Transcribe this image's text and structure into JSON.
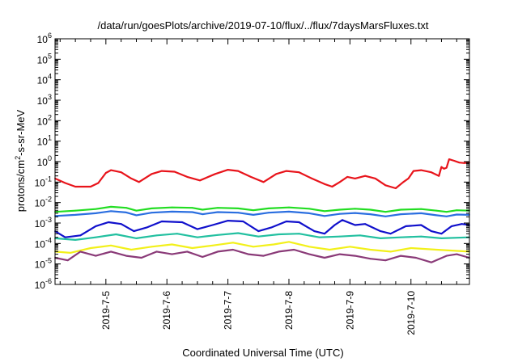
{
  "chart_data": {
    "type": "line",
    "title": "/data/run/goesPlots/archive/2019-07-10/flux/../flux/7daysMarsFluxes.txt",
    "xlabel": "Coordinated Universal Time (UTC)",
    "ylabel_base": "protons/cm",
    "ylabel_sup": "2",
    "ylabel_rest": "-s-sr-MeV",
    "y_scale": "log",
    "ylim_exp": [
      -6,
      6
    ],
    "y_tick_exponents": [
      -6,
      -5,
      -4,
      -3,
      -2,
      -1,
      0,
      1,
      2,
      3,
      4,
      5,
      6
    ],
    "y_tick_base": "10",
    "xlim": [
      "2019-07-04T04:00",
      "2019-07-10T23:00"
    ],
    "x_ticks": [
      "2019-7-5",
      "2019-7-6",
      "2019-7-7",
      "2019-7-8",
      "2019-7-9",
      "2019-7-10"
    ],
    "grid": false,
    "legend": "none",
    "series": [
      {
        "color": "#e8141b",
        "points": [
          [
            "2019-07-04T04:00",
            0.15
          ],
          [
            "2019-07-04T08:00",
            0.09
          ],
          [
            "2019-07-04T12:00",
            0.06
          ],
          [
            "2019-07-04T18:00",
            0.06
          ],
          [
            "2019-07-04T21:00",
            0.09
          ],
          [
            "2019-07-05T00:00",
            0.28
          ],
          [
            "2019-07-05T02:00",
            0.38
          ],
          [
            "2019-07-05T06:00",
            0.3
          ],
          [
            "2019-07-05T10:00",
            0.15
          ],
          [
            "2019-07-05T13:00",
            0.1
          ],
          [
            "2019-07-05T18:00",
            0.25
          ],
          [
            "2019-07-05T22:00",
            0.35
          ],
          [
            "2019-07-06T03:00",
            0.32
          ],
          [
            "2019-07-06T08:00",
            0.18
          ],
          [
            "2019-07-06T13:00",
            0.12
          ],
          [
            "2019-07-06T19:00",
            0.25
          ],
          [
            "2019-07-07T00:00",
            0.4
          ],
          [
            "2019-07-07T04:00",
            0.35
          ],
          [
            "2019-07-07T09:00",
            0.18
          ],
          [
            "2019-07-07T14:00",
            0.1
          ],
          [
            "2019-07-07T19:00",
            0.25
          ],
          [
            "2019-07-07T23:00",
            0.35
          ],
          [
            "2019-07-08T04:00",
            0.3
          ],
          [
            "2019-07-08T09:00",
            0.15
          ],
          [
            "2019-07-08T14:00",
            0.08
          ],
          [
            "2019-07-08T17:00",
            0.06
          ],
          [
            "2019-07-08T20:00",
            0.1
          ],
          [
            "2019-07-08T23:00",
            0.18
          ],
          [
            "2019-07-09T02:00",
            0.15
          ],
          [
            "2019-07-09T06:00",
            0.2
          ],
          [
            "2019-07-09T10:00",
            0.15
          ],
          [
            "2019-07-09T14:00",
            0.07
          ],
          [
            "2019-07-09T18:00",
            0.05
          ],
          [
            "2019-07-09T21:00",
            0.1
          ],
          [
            "2019-07-09T23:00",
            0.15
          ],
          [
            "2019-07-10T01:00",
            0.35
          ],
          [
            "2019-07-10T04:00",
            0.38
          ],
          [
            "2019-07-10T08:00",
            0.3
          ],
          [
            "2019-07-10T11:00",
            0.2
          ],
          [
            "2019-07-10T12:00",
            0.55
          ],
          [
            "2019-07-10T13:00",
            0.45
          ],
          [
            "2019-07-10T14:00",
            0.5
          ],
          [
            "2019-07-10T15:00",
            1.3
          ],
          [
            "2019-07-10T17:00",
            1.1
          ],
          [
            "2019-07-10T19:00",
            0.9
          ],
          [
            "2019-07-10T21:00",
            0.85
          ],
          [
            "2019-07-10T23:00",
            0.9
          ]
        ]
      },
      {
        "color": "#22dd22",
        "points": [
          [
            "2019-07-04T04:00",
            0.0035
          ],
          [
            "2019-07-04T12:00",
            0.004
          ],
          [
            "2019-07-04T20:00",
            0.0048
          ],
          [
            "2019-07-05T02:00",
            0.0062
          ],
          [
            "2019-07-05T08:00",
            0.0055
          ],
          [
            "2019-07-05T12:00",
            0.004
          ],
          [
            "2019-07-05T18:00",
            0.0052
          ],
          [
            "2019-07-06T02:00",
            0.0058
          ],
          [
            "2019-07-06T10:00",
            0.0055
          ],
          [
            "2019-07-06T14:00",
            0.0045
          ],
          [
            "2019-07-06T20:00",
            0.0055
          ],
          [
            "2019-07-07T04:00",
            0.0052
          ],
          [
            "2019-07-07T10:00",
            0.0042
          ],
          [
            "2019-07-07T16:00",
            0.0052
          ],
          [
            "2019-07-08T00:00",
            0.0058
          ],
          [
            "2019-07-08T08:00",
            0.005
          ],
          [
            "2019-07-08T14:00",
            0.0038
          ],
          [
            "2019-07-08T20:00",
            0.0045
          ],
          [
            "2019-07-09T02:00",
            0.005
          ],
          [
            "2019-07-09T08:00",
            0.0045
          ],
          [
            "2019-07-09T14:00",
            0.0035
          ],
          [
            "2019-07-09T20:00",
            0.0045
          ],
          [
            "2019-07-10T04:00",
            0.0048
          ],
          [
            "2019-07-10T10:00",
            0.004
          ],
          [
            "2019-07-10T14:00",
            0.0035
          ],
          [
            "2019-07-10T18:00",
            0.0042
          ],
          [
            "2019-07-10T23:00",
            0.004
          ]
        ]
      },
      {
        "color": "#2a6ee0",
        "points": [
          [
            "2019-07-04T04:00",
            0.0022
          ],
          [
            "2019-07-04T12:00",
            0.0025
          ],
          [
            "2019-07-04T20:00",
            0.003
          ],
          [
            "2019-07-05T02:00",
            0.0038
          ],
          [
            "2019-07-05T08:00",
            0.0033
          ],
          [
            "2019-07-05T12:00",
            0.0024
          ],
          [
            "2019-07-05T18:00",
            0.0032
          ],
          [
            "2019-07-06T02:00",
            0.0036
          ],
          [
            "2019-07-06T10:00",
            0.0034
          ],
          [
            "2019-07-06T14:00",
            0.0027
          ],
          [
            "2019-07-06T20:00",
            0.0034
          ],
          [
            "2019-07-07T04:00",
            0.0032
          ],
          [
            "2019-07-07T10:00",
            0.0025
          ],
          [
            "2019-07-07T16:00",
            0.0032
          ],
          [
            "2019-07-08T00:00",
            0.0036
          ],
          [
            "2019-07-08T08:00",
            0.003
          ],
          [
            "2019-07-08T14:00",
            0.0022
          ],
          [
            "2019-07-08T20:00",
            0.0028
          ],
          [
            "2019-07-09T02:00",
            0.0031
          ],
          [
            "2019-07-09T08:00",
            0.0027
          ],
          [
            "2019-07-09T14:00",
            0.0021
          ],
          [
            "2019-07-09T20:00",
            0.0027
          ],
          [
            "2019-07-10T04:00",
            0.003
          ],
          [
            "2019-07-10T10:00",
            0.0024
          ],
          [
            "2019-07-10T14:00",
            0.0021
          ],
          [
            "2019-07-10T18:00",
            0.0026
          ],
          [
            "2019-07-10T23:00",
            0.0025
          ]
        ]
      },
      {
        "color": "#1010cc",
        "points": [
          [
            "2019-07-04T04:00",
            0.0004
          ],
          [
            "2019-07-04T08:00",
            0.0002
          ],
          [
            "2019-07-04T14:00",
            0.00025
          ],
          [
            "2019-07-04T20:00",
            0.0007
          ],
          [
            "2019-07-05T01:00",
            0.0011
          ],
          [
            "2019-07-05T06:00",
            0.0009
          ],
          [
            "2019-07-05T11:00",
            0.0004
          ],
          [
            "2019-07-05T16:00",
            0.0006
          ],
          [
            "2019-07-05T22:00",
            0.0012
          ],
          [
            "2019-07-06T06:00",
            0.0011
          ],
          [
            "2019-07-06T12:00",
            0.0005
          ],
          [
            "2019-07-06T18:00",
            0.0008
          ],
          [
            "2019-07-07T00:00",
            0.0013
          ],
          [
            "2019-07-07T06:00",
            0.0012
          ],
          [
            "2019-07-07T12:00",
            0.0004
          ],
          [
            "2019-07-07T17:00",
            0.0006
          ],
          [
            "2019-07-07T23:00",
            0.0012
          ],
          [
            "2019-07-08T04:00",
            0.0011
          ],
          [
            "2019-07-08T10:00",
            0.0004
          ],
          [
            "2019-07-08T14:00",
            0.0003
          ],
          [
            "2019-07-08T18:00",
            0.0008
          ],
          [
            "2019-07-08T21:00",
            0.0014
          ],
          [
            "2019-07-09T02:00",
            0.0008
          ],
          [
            "2019-07-09T06:00",
            0.0009
          ],
          [
            "2019-07-09T12:00",
            0.0004
          ],
          [
            "2019-07-09T16:00",
            0.0003
          ],
          [
            "2019-07-09T22:00",
            0.0007
          ],
          [
            "2019-07-10T04:00",
            0.0008
          ],
          [
            "2019-07-10T08:00",
            0.0004
          ],
          [
            "2019-07-10T12:00",
            0.0003
          ],
          [
            "2019-07-10T16:00",
            0.0007
          ],
          [
            "2019-07-10T20:00",
            0.0009
          ],
          [
            "2019-07-10T23:00",
            0.0008
          ]
        ]
      },
      {
        "color": "#22c0a0",
        "points": [
          [
            "2019-07-04T04:00",
            0.00018
          ],
          [
            "2019-07-04T12:00",
            0.00015
          ],
          [
            "2019-07-04T20:00",
            0.0002
          ],
          [
            "2019-07-05T04:00",
            0.00028
          ],
          [
            "2019-07-05T12:00",
            0.00018
          ],
          [
            "2019-07-05T20:00",
            0.00025
          ],
          [
            "2019-07-06T04:00",
            0.0003
          ],
          [
            "2019-07-06T12:00",
            0.0002
          ],
          [
            "2019-07-06T20:00",
            0.00026
          ],
          [
            "2019-07-07T04:00",
            0.00032
          ],
          [
            "2019-07-07T12:00",
            0.00022
          ],
          [
            "2019-07-07T20:00",
            0.00028
          ],
          [
            "2019-07-08T04:00",
            0.0003
          ],
          [
            "2019-07-08T12:00",
            0.0002
          ],
          [
            "2019-07-08T20:00",
            0.00022
          ],
          [
            "2019-07-09T04:00",
            0.00025
          ],
          [
            "2019-07-09T12:00",
            0.00018
          ],
          [
            "2019-07-09T20:00",
            0.0002
          ],
          [
            "2019-07-10T04:00",
            0.00022
          ],
          [
            "2019-07-10T12:00",
            0.00018
          ],
          [
            "2019-07-10T23:00",
            0.0002
          ]
        ]
      },
      {
        "color": "#f2f01a",
        "points": [
          [
            "2019-07-04T04:00",
            4e-05
          ],
          [
            "2019-07-04T10:00",
            3.5e-05
          ],
          [
            "2019-07-04T18:00",
            6e-05
          ],
          [
            "2019-07-05T02:00",
            8e-05
          ],
          [
            "2019-07-05T10:00",
            5e-05
          ],
          [
            "2019-07-05T18:00",
            7e-05
          ],
          [
            "2019-07-06T02:00",
            9e-05
          ],
          [
            "2019-07-06T10:00",
            6e-05
          ],
          [
            "2019-07-06T18:00",
            8e-05
          ],
          [
            "2019-07-07T02:00",
            0.00011
          ],
          [
            "2019-07-07T10:00",
            7e-05
          ],
          [
            "2019-07-07T18:00",
            9e-05
          ],
          [
            "2019-07-08T00:00",
            0.00012
          ],
          [
            "2019-07-08T08:00",
            7e-05
          ],
          [
            "2019-07-08T16:00",
            5e-05
          ],
          [
            "2019-07-09T00:00",
            7e-05
          ],
          [
            "2019-07-09T08:00",
            5e-05
          ],
          [
            "2019-07-09T16:00",
            4e-05
          ],
          [
            "2019-07-10T00:00",
            6e-05
          ],
          [
            "2019-07-10T10:00",
            5e-05
          ],
          [
            "2019-07-10T23:00",
            4e-05
          ]
        ]
      },
      {
        "color": "#8a3a78",
        "points": [
          [
            "2019-07-04T04:00",
            2e-05
          ],
          [
            "2019-07-04T09:00",
            1.5e-05
          ],
          [
            "2019-07-04T14:00",
            4e-05
          ],
          [
            "2019-07-04T20:00",
            2.5e-05
          ],
          [
            "2019-07-05T02:00",
            4e-05
          ],
          [
            "2019-07-05T08:00",
            2.5e-05
          ],
          [
            "2019-07-05T14:00",
            2e-05
          ],
          [
            "2019-07-05T20:00",
            4e-05
          ],
          [
            "2019-07-06T02:00",
            3e-05
          ],
          [
            "2019-07-06T08:00",
            4e-05
          ],
          [
            "2019-07-06T14:00",
            2.2e-05
          ],
          [
            "2019-07-06T20:00",
            4e-05
          ],
          [
            "2019-07-07T02:00",
            5e-05
          ],
          [
            "2019-07-07T08:00",
            3e-05
          ],
          [
            "2019-07-07T14:00",
            2.5e-05
          ],
          [
            "2019-07-07T20:00",
            4e-05
          ],
          [
            "2019-07-08T02:00",
            5e-05
          ],
          [
            "2019-07-08T08:00",
            3e-05
          ],
          [
            "2019-07-08T14:00",
            2e-05
          ],
          [
            "2019-07-08T20:00",
            3e-05
          ],
          [
            "2019-07-09T02:00",
            2.5e-05
          ],
          [
            "2019-07-09T08:00",
            1.8e-05
          ],
          [
            "2019-07-09T14:00",
            1.5e-05
          ],
          [
            "2019-07-09T20:00",
            2.5e-05
          ],
          [
            "2019-07-10T02:00",
            2e-05
          ],
          [
            "2019-07-10T08:00",
            1.2e-05
          ],
          [
            "2019-07-10T14:00",
            2.5e-05
          ],
          [
            "2019-07-10T18:00",
            3e-05
          ],
          [
            "2019-07-10T23:00",
            2e-05
          ]
        ]
      }
    ]
  }
}
